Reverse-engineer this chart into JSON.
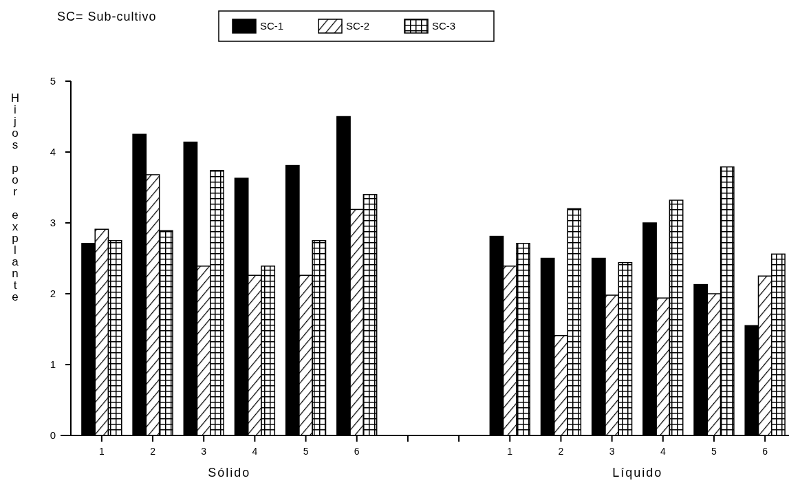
{
  "chart_data": {
    "type": "bar",
    "ylabel": "Hijos por explante",
    "categories": [
      "1",
      "2",
      "3",
      "4",
      "5",
      "6",
      null,
      null,
      "1",
      "2",
      "3",
      "4",
      "5",
      "6"
    ],
    "series": [
      {
        "name": "SC-1",
        "color": "#000000",
        "values": [
          2.71,
          4.25,
          4.14,
          3.63,
          3.81,
          4.5,
          null,
          null,
          2.81,
          2.5,
          2.5,
          3.0,
          2.13,
          1.55
        ]
      },
      {
        "name": "SC-2",
        "color": "#000000",
        "values": [
          2.91,
          3.68,
          2.39,
          2.26,
          2.26,
          3.19,
          null,
          null,
          2.39,
          1.41,
          1.98,
          1.94,
          2.0,
          2.25
        ]
      },
      {
        "name": "SC-3",
        "color": "#000000",
        "values": [
          2.75,
          2.89,
          3.74,
          2.39,
          2.75,
          3.4,
          null,
          null,
          2.71,
          3.2,
          2.44,
          3.32,
          3.79,
          2.56
        ]
      }
    ],
    "ylim": [
      0,
      5
    ],
    "yticks": [
      0,
      1,
      2,
      3,
      4,
      5
    ],
    "grid": false,
    "legend": "top",
    "annotations": [
      "SC= Sub-cultivo",
      "Sólido",
      "Líquido"
    ]
  }
}
